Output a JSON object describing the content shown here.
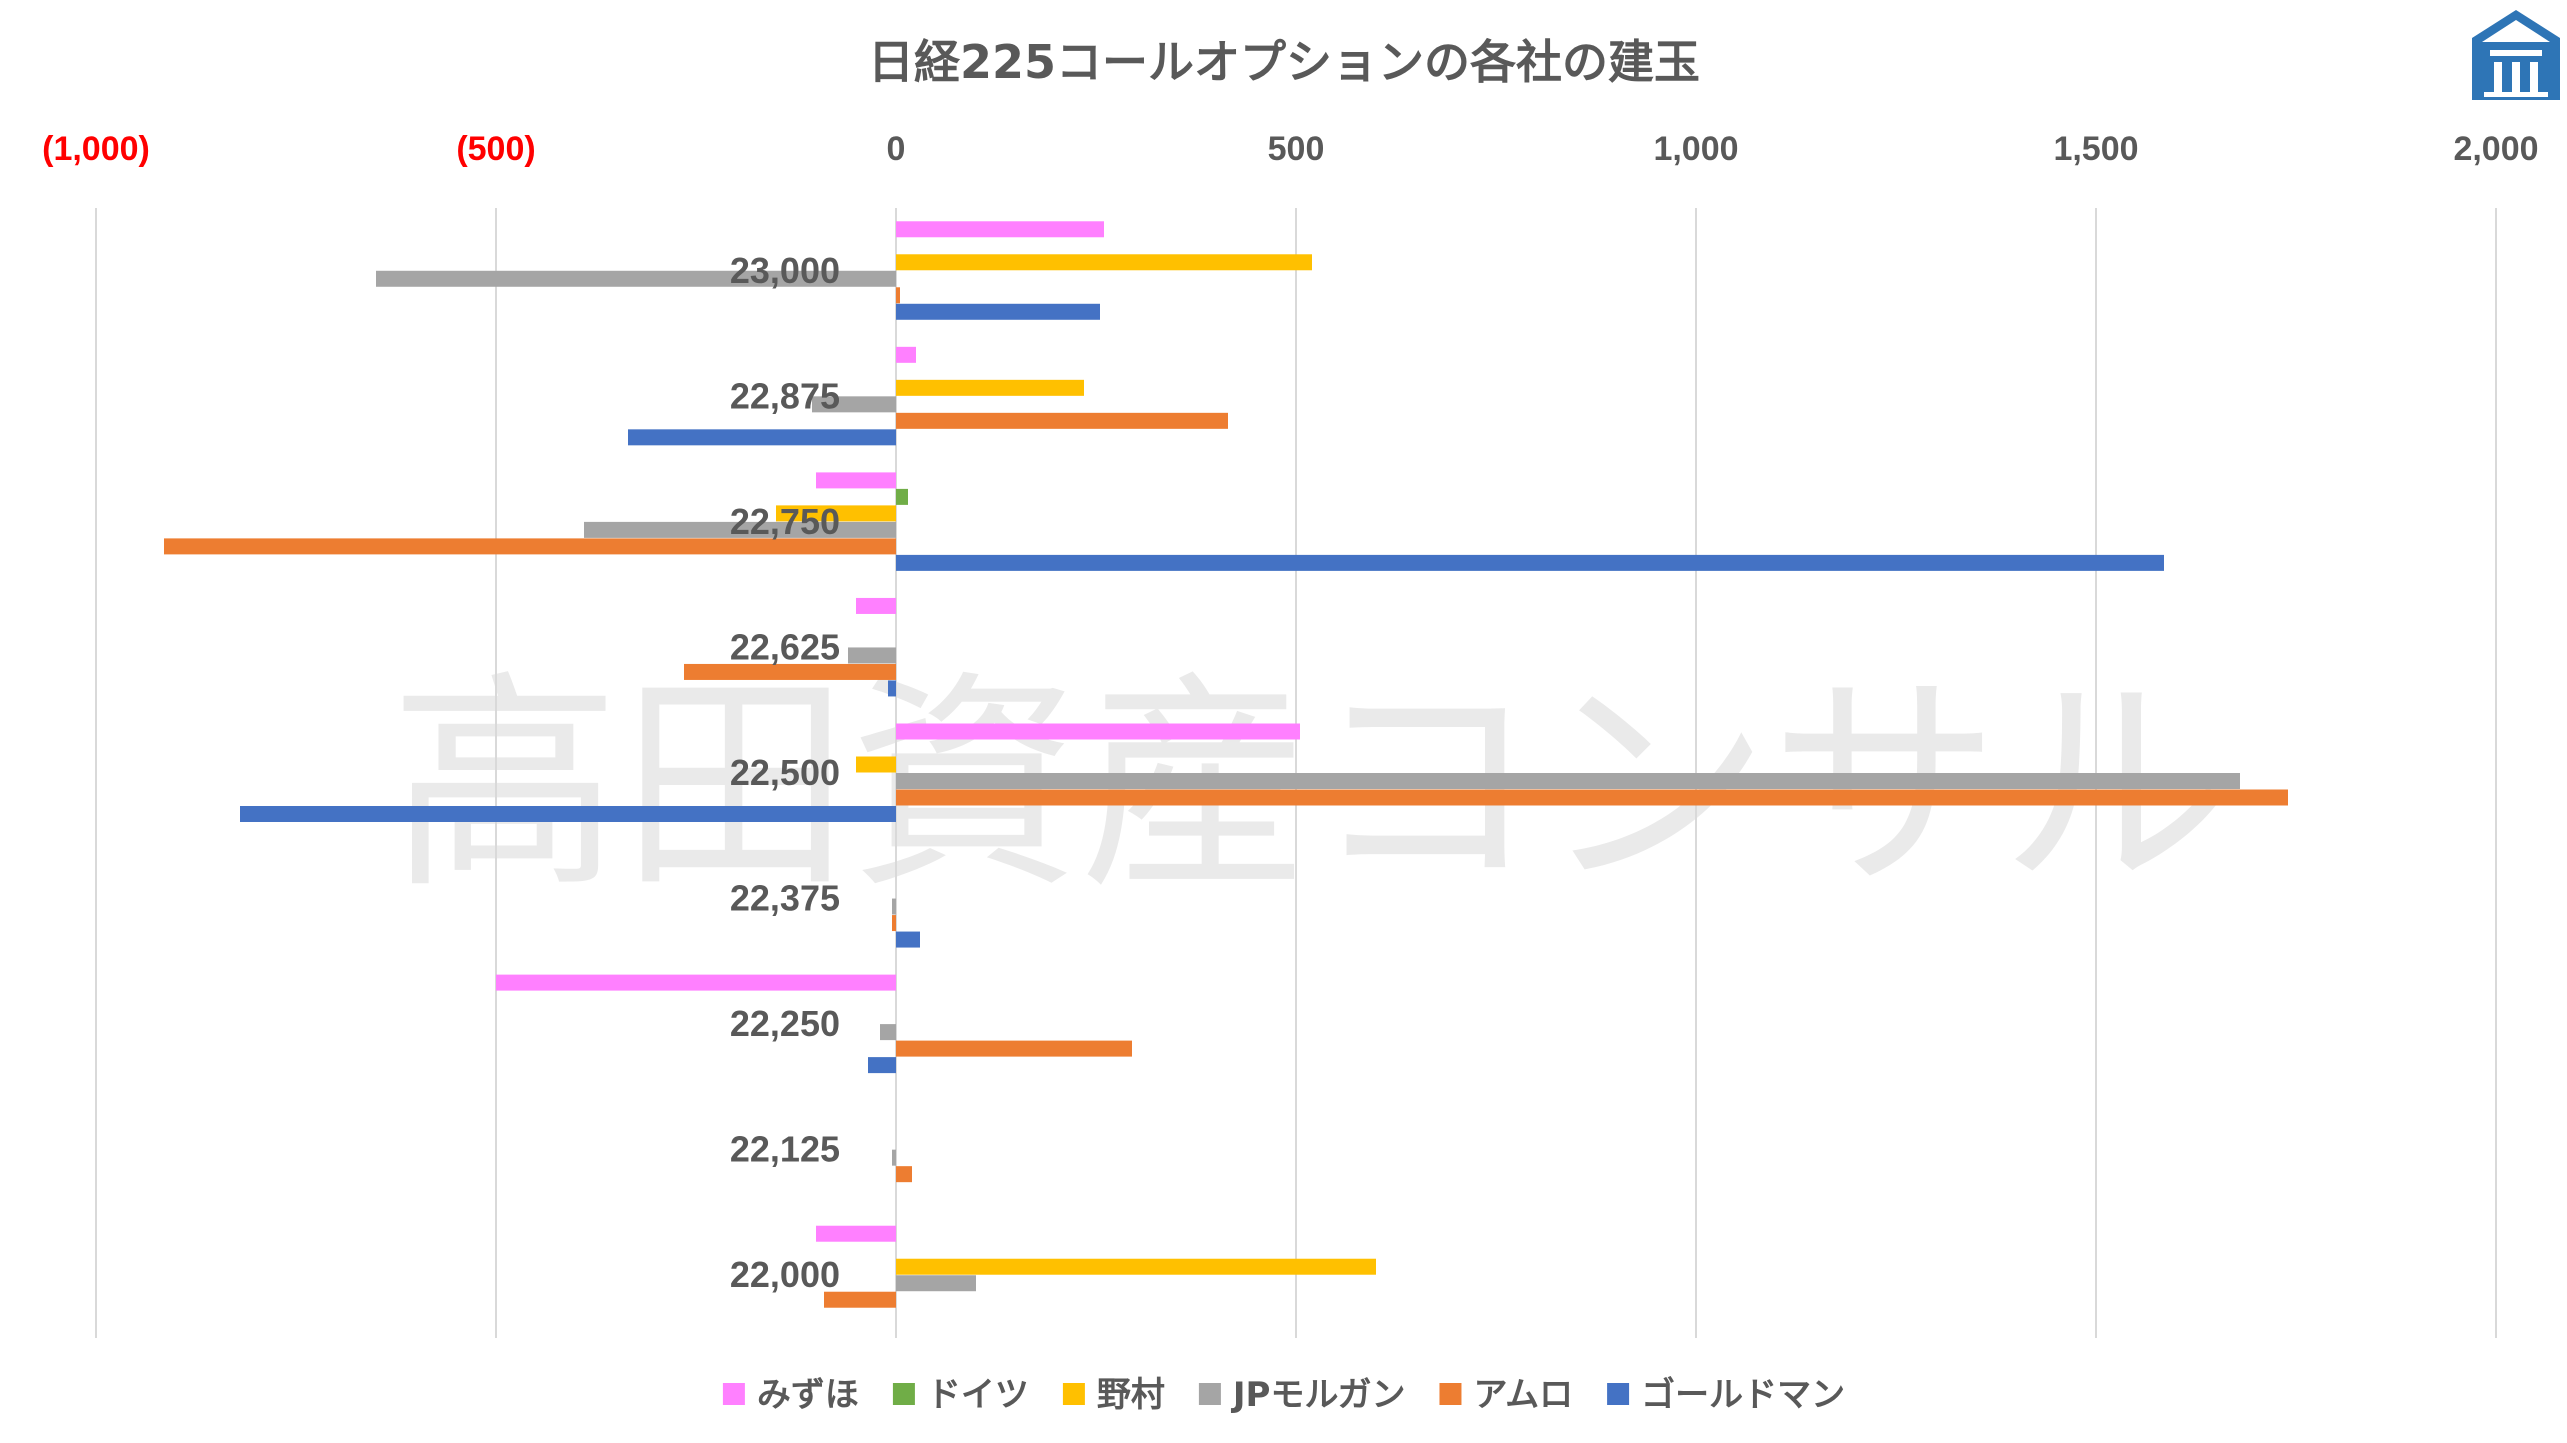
{
  "chart_data": {
    "type": "bar",
    "orientation": "horizontal",
    "title": "日経225コールオプションの各社の建玉",
    "watermark": "高田資産コンサル",
    "xlim": [
      -1000,
      2000
    ],
    "x_ticks": [
      {
        "value": -1000,
        "label": "(1,000)",
        "color": "#ff0000"
      },
      {
        "value": -500,
        "label": "(500)",
        "color": "#ff0000"
      },
      {
        "value": 0,
        "label": "0",
        "color": "#595959"
      },
      {
        "value": 500,
        "label": "500",
        "color": "#595959"
      },
      {
        "value": 1000,
        "label": "1,000",
        "color": "#595959"
      },
      {
        "value": 1500,
        "label": "1,500",
        "color": "#595959"
      },
      {
        "value": 2000,
        "label": "2,000",
        "color": "#595959"
      }
    ],
    "x_axis_position": "top",
    "grid": true,
    "legend_position": "bottom",
    "categories": [
      "23,000",
      "22,875",
      "22,750",
      "22,625",
      "22,500",
      "22,375",
      "22,250",
      "22,125",
      "22,000"
    ],
    "series": [
      {
        "name": "みずほ",
        "color": "#ff80ff",
        "values": [
          260,
          25,
          -100,
          -50,
          505,
          0,
          -500,
          0,
          -100
        ]
      },
      {
        "name": "ドイツ",
        "color": "#70ad47",
        "values": [
          0,
          0,
          15,
          0,
          0,
          0,
          0,
          0,
          0
        ]
      },
      {
        "name": "野村",
        "color": "#ffc000",
        "values": [
          520,
          235,
          -150,
          0,
          -50,
          0,
          0,
          0,
          600
        ]
      },
      {
        "name": "JPモルガン",
        "color": "#a5a5a5",
        "values": [
          -650,
          -105,
          -390,
          -60,
          1680,
          -5,
          -20,
          -5,
          100
        ]
      },
      {
        "name": "アムロ",
        "color": "#ed7d31",
        "values": [
          5,
          415,
          -915,
          -265,
          1740,
          -5,
          295,
          20,
          -90
        ]
      },
      {
        "name": "ゴールドマン",
        "color": "#4472c4",
        "values": [
          255,
          -335,
          1585,
          -10,
          -820,
          30,
          -35,
          0,
          0
        ]
      }
    ]
  },
  "logo": {
    "name": "takada-asset-logo",
    "color": "#2e75b6"
  }
}
